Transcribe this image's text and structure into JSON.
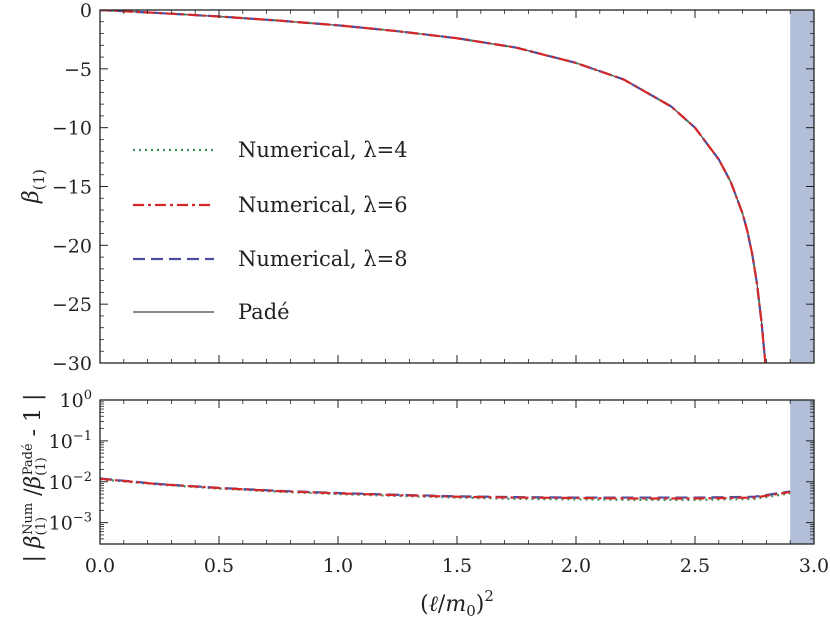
{
  "colors": {
    "numerical_4": "#3e8f5a",
    "numerical_6": "#d62728",
    "numerical_8": "#4b4fa3",
    "pade": "#444444",
    "shaded_region": "#b3bfd8",
    "frame": "#222222"
  },
  "chart_data": [
    {
      "type": "line",
      "ylabel": "β(1)",
      "xlim": [
        0,
        3.0
      ],
      "ylim": [
        -30,
        0
      ],
      "yticks": [
        0,
        -5,
        -10,
        -15,
        -20,
        -25,
        -30
      ],
      "ytick_labels": [
        "0",
        "−5",
        "−10",
        "−15",
        "−20",
        "−25",
        "−30"
      ],
      "shaded_x": [
        2.9,
        3.0
      ],
      "legend": {
        "placement": "left"
      },
      "series": [
        {
          "name": "Numerical, λ=4",
          "style": "dotted",
          "color": "#3e8f5a",
          "x": [
            0,
            0.25,
            0.5,
            0.75,
            1.0,
            1.25,
            1.5,
            1.75,
            2.0,
            2.2,
            2.4,
            2.5,
            2.6,
            2.65,
            2.7,
            2.72,
            2.74,
            2.76,
            2.78,
            2.8
          ],
          "y": [
            0,
            -0.26,
            -0.55,
            -0.9,
            -1.3,
            -1.8,
            -2.4,
            -3.2,
            -4.5,
            -5.9,
            -8.2,
            -10.0,
            -12.7,
            -14.6,
            -17.3,
            -18.8,
            -20.7,
            -23.2,
            -26.6,
            -31.0
          ]
        },
        {
          "name": "Numerical, λ=6",
          "style": "dashdot",
          "color": "#d62728",
          "x": [
            0,
            0.25,
            0.5,
            0.75,
            1.0,
            1.25,
            1.5,
            1.75,
            2.0,
            2.2,
            2.4,
            2.5,
            2.6,
            2.65,
            2.7,
            2.72,
            2.74,
            2.76,
            2.78,
            2.8
          ],
          "y": [
            0,
            -0.26,
            -0.55,
            -0.9,
            -1.3,
            -1.8,
            -2.4,
            -3.2,
            -4.5,
            -5.9,
            -8.2,
            -10.0,
            -12.7,
            -14.6,
            -17.3,
            -18.8,
            -20.7,
            -23.2,
            -26.6,
            -31.0
          ]
        },
        {
          "name": "Numerical, λ=8",
          "style": "dashed",
          "color": "#4b4fa3",
          "x": [
            0,
            0.25,
            0.5,
            0.75,
            1.0,
            1.25,
            1.5,
            1.75,
            2.0,
            2.2,
            2.4,
            2.5,
            2.6,
            2.65,
            2.7,
            2.72,
            2.74,
            2.76,
            2.78,
            2.8
          ],
          "y": [
            0,
            -0.26,
            -0.55,
            -0.9,
            -1.3,
            -1.8,
            -2.4,
            -3.2,
            -4.5,
            -5.9,
            -8.2,
            -10.0,
            -12.7,
            -14.6,
            -17.3,
            -18.8,
            -20.7,
            -23.2,
            -26.6,
            -31.0
          ]
        },
        {
          "name": "Padé",
          "style": "solid",
          "color": "#444444",
          "x": [
            0,
            0.25,
            0.5,
            0.75,
            1.0,
            1.25,
            1.5,
            1.75,
            2.0,
            2.2,
            2.4,
            2.5,
            2.6,
            2.65,
            2.7,
            2.72,
            2.74,
            2.76,
            2.78,
            2.8
          ],
          "y": [
            0,
            -0.26,
            -0.55,
            -0.9,
            -1.3,
            -1.8,
            -2.4,
            -3.2,
            -4.5,
            -5.9,
            -8.2,
            -10.0,
            -12.7,
            -14.6,
            -17.3,
            -18.8,
            -20.7,
            -23.2,
            -26.6,
            -31.0
          ]
        }
      ]
    },
    {
      "type": "line",
      "ylabel": "| β(1)Num / β(1)Padé − 1 |",
      "xlabel": "(ℓ/m0)²",
      "xlim": [
        0,
        3.0
      ],
      "ylim": [
        0.0003,
        1
      ],
      "yscale": "log",
      "xticks": [
        0.0,
        0.5,
        1.0,
        1.5,
        2.0,
        2.5,
        3.0
      ],
      "xtick_labels": [
        "0.0",
        "0.5",
        "1.0",
        "1.5",
        "2.0",
        "2.5",
        "3.0"
      ],
      "yticks": [
        1,
        0.1,
        0.01,
        0.001
      ],
      "shaded_x": [
        2.9,
        3.0
      ],
      "series": [
        {
          "name": "Numerical, λ=4",
          "style": "dotted",
          "color": "#3e8f5a",
          "x": [
            0,
            0.25,
            0.5,
            0.75,
            1.0,
            1.25,
            1.5,
            1.75,
            2.0,
            2.25,
            2.5,
            2.75,
            2.9
          ],
          "y": [
            0.0115,
            0.0085,
            0.0068,
            0.0057,
            0.005,
            0.0045,
            0.0041,
            0.0038,
            0.0037,
            0.0036,
            0.0036,
            0.0038,
            0.0052
          ]
        },
        {
          "name": "Numerical, λ=6",
          "style": "dashdot",
          "color": "#d62728",
          "x": [
            0,
            0.25,
            0.5,
            0.75,
            1.0,
            1.25,
            1.5,
            1.75,
            2.0,
            2.25,
            2.5,
            2.75,
            2.9
          ],
          "y": [
            0.0118,
            0.0087,
            0.007,
            0.0059,
            0.0052,
            0.0047,
            0.0043,
            0.0041,
            0.004,
            0.0039,
            0.0039,
            0.0041,
            0.0056
          ]
        },
        {
          "name": "Numerical, λ=8",
          "style": "dashed",
          "color": "#4b4fa3",
          "x": [
            0,
            0.25,
            0.5,
            0.75,
            1.0,
            1.25,
            1.5,
            1.75,
            2.0,
            2.25,
            2.5,
            2.75,
            2.9
          ],
          "y": [
            0.012,
            0.0088,
            0.0071,
            0.006,
            0.0053,
            0.0048,
            0.0044,
            0.0042,
            0.0041,
            0.0041,
            0.0041,
            0.0043,
            0.0058
          ]
        }
      ]
    }
  ]
}
